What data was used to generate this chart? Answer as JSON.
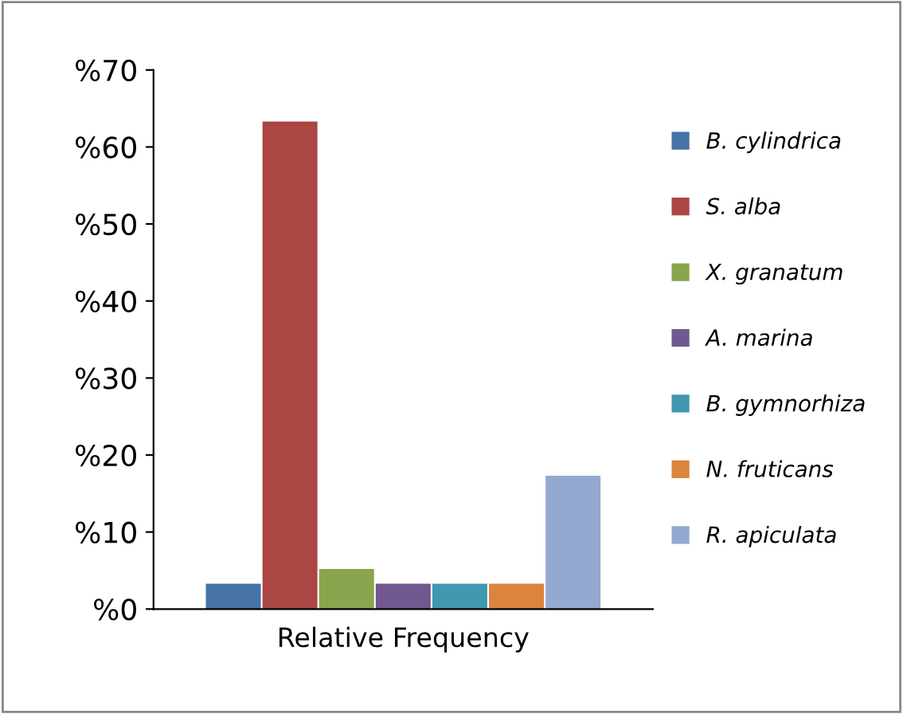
{
  "chart_data": {
    "type": "bar",
    "categories": [
      null
    ],
    "xlabel": "Relative Frequency",
    "series": [
      {
        "name": "B. cylindrica",
        "color": "#4572a7",
        "values": [
          3.3
        ]
      },
      {
        "name": "S. alba",
        "color": "#aa4643",
        "values": [
          63.3
        ]
      },
      {
        "name": "X. granatum",
        "color": "#89a54e",
        "values": [
          5.2
        ]
      },
      {
        "name": "A. marina",
        "color": "#71588f",
        "values": [
          3.3
        ]
      },
      {
        "name": "B. gymnorhiza",
        "color": "#4198af",
        "values": [
          3.3
        ]
      },
      {
        "name": "N. fruticans",
        "color": "#db843d",
        "values": [
          3.3
        ]
      },
      {
        "name": "R. apiculata",
        "color": "#93a9cf",
        "values": [
          17.3
        ]
      }
    ],
    "ylim": [
      0,
      70
    ],
    "yticks": [
      {
        "value": 0,
        "label": "%0"
      },
      {
        "value": 10,
        "label": "%10"
      },
      {
        "value": 20,
        "label": "%20"
      },
      {
        "value": 30,
        "label": "%30"
      },
      {
        "value": 40,
        "label": "%40"
      },
      {
        "value": 50,
        "label": "%50"
      },
      {
        "value": 60,
        "label": "%60"
      },
      {
        "value": 70,
        "label": "%70"
      }
    ],
    "legend": "right",
    "grid": false
  }
}
